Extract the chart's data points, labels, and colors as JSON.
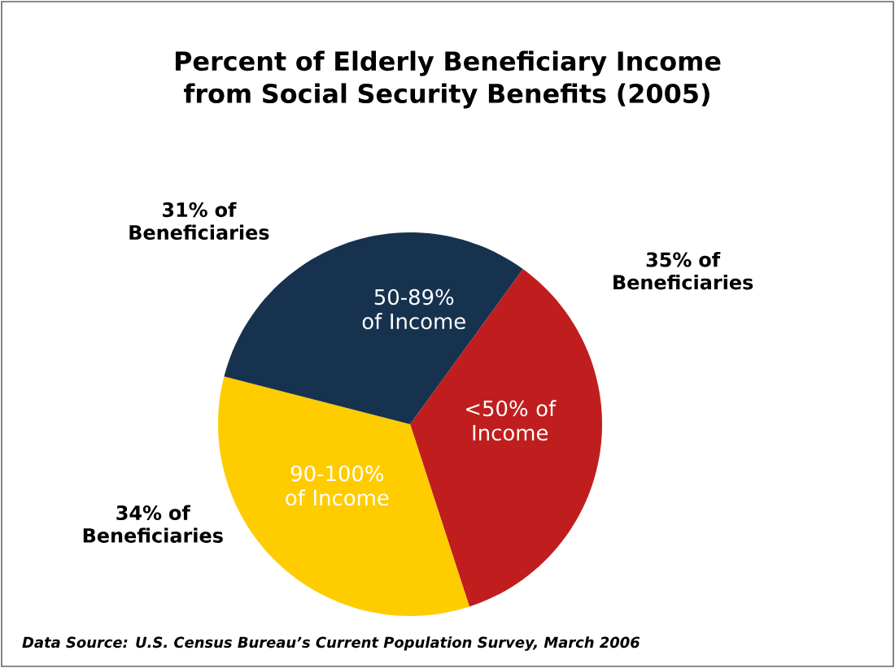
{
  "chart_data": {
    "type": "pie",
    "title": "Percent of Elderly Beneficiary Income from Social Security Benefits (2005)",
    "categories": [
      "<50% of Income",
      "90-100% of Income",
      "50-89% of Income"
    ],
    "values": [
      35,
      34,
      31
    ],
    "colors": [
      "#c01e1e",
      "#ffcc00",
      "#17324f"
    ],
    "value_labels": [
      "35% of Beneficiaries",
      "34% of Beneficiaries",
      "31% of Beneficiaries"
    ],
    "annotations": [
      "Data Source: U.S. Census Bureau’s Current Population Survey, March 2006"
    ]
  }
}
